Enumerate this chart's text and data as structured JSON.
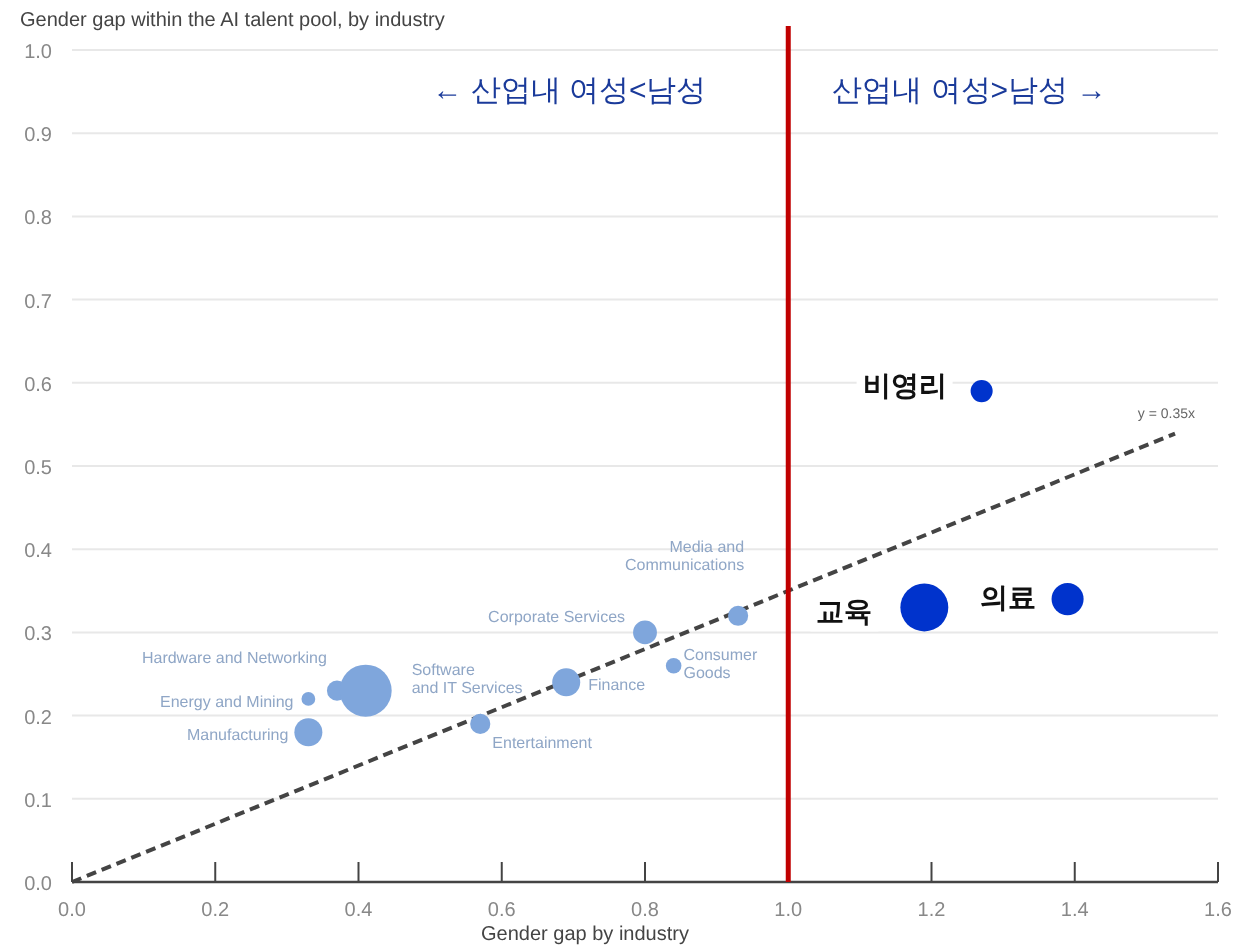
{
  "chart_data": {
    "type": "bubble",
    "ylabel": "Gender gap within the AI talent pool, by industry",
    "xlabel": "Gender gap by industry",
    "xlim": [
      0,
      1.6
    ],
    "ylim": [
      0,
      1.0
    ],
    "xticks": [
      {
        "value": 0,
        "label": "0.0"
      },
      {
        "value": 0.2,
        "label": "0.2"
      },
      {
        "value": 0.4,
        "label": "0.4"
      },
      {
        "value": 0.6,
        "label": "0.6"
      },
      {
        "value": 0.8,
        "label": "0.8"
      },
      {
        "value": 1,
        "label": "1.0"
      },
      {
        "value": 1.2,
        "label": "1.2"
      },
      {
        "value": 1.4,
        "label": "1.4"
      },
      {
        "value": 1.6,
        "label": "1.6"
      }
    ],
    "yticks": [
      {
        "value": 0,
        "label": "0.0"
      },
      {
        "value": 0.1,
        "label": "0.1"
      },
      {
        "value": 0.2,
        "label": "0.2"
      },
      {
        "value": 0.3,
        "label": "0.3"
      },
      {
        "value": 0.4,
        "label": "0.4"
      },
      {
        "value": 0.5,
        "label": "0.5"
      },
      {
        "value": 0.6,
        "label": "0.6"
      },
      {
        "value": 0.7,
        "label": "0.7"
      },
      {
        "value": 0.8,
        "label": "0.8"
      },
      {
        "value": 0.9,
        "label": "0.9"
      },
      {
        "value": 1,
        "label": "1.0"
      }
    ],
    "grid": "y",
    "series": [
      {
        "x": [
          0.33,
          0.33,
          0.37,
          0.41,
          0.57,
          0.69,
          0.8,
          0.84,
          0.93,
          1.19,
          1.39,
          1.27
        ],
        "values": [
          0.18,
          0.22,
          0.23,
          0.23,
          0.19,
          0.24,
          0.3,
          0.26,
          0.32,
          0.33,
          0.34,
          0.59
        ],
        "sizes": [
          0.29,
          0.07,
          0.15,
          1,
          0.15,
          0.29,
          0.21,
          0.09,
          0.15,
          0.85,
          0.38,
          0.18
        ],
        "colors": [
          "#7fa6dc",
          "#7fa6dc",
          "#7fa6dc",
          "#7fa6dc",
          "#7fa6dc",
          "#7fa6dc",
          "#7fa6dc",
          "#7fa6dc",
          "#7fa6dc",
          "#0033cc",
          "#0033cc",
          "#0033cc"
        ],
        "value_labels": [
          "Manufacturing",
          "Energy and Mining",
          "Hardware and Networking",
          "Software\nand IT Services",
          "Entertainment",
          "Finance",
          "Corporate Services",
          "Consumer\nGoods",
          "Media and\nCommunications",
          "교육",
          "의료",
          "비영리"
        ]
      },
      {
        "type": "line",
        "name": "y = 0.35x",
        "color": "#444444",
        "line_style": "dashed",
        "x": [
          0,
          1.54
        ],
        "values": [
          0,
          0.539
        ]
      }
    ],
    "ref_lines": [
      {
        "axis": "x",
        "value": 1.0,
        "color": "#c00000"
      }
    ],
    "annotations": [
      "← 산업내 여성<남성",
      "산업내 여성>남성 →"
    ]
  }
}
